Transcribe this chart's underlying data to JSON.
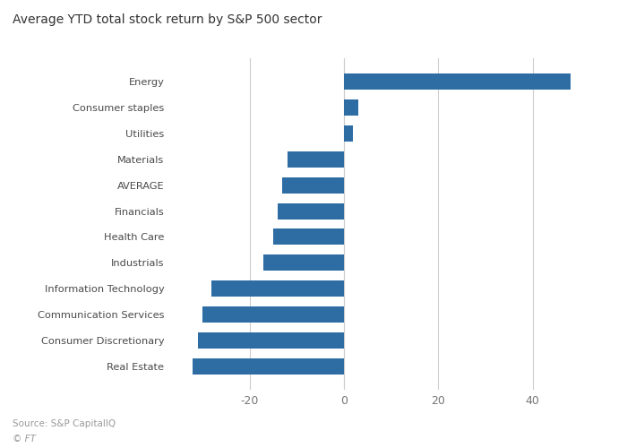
{
  "title": "Average YTD total stock return by S&P 500 sector",
  "source": "Source: S&P CapitalIQ",
  "footer": "© FT",
  "categories": [
    "Energy",
    "Consumer staples",
    "Utilities",
    "Materials",
    "AVERAGE",
    "Financials",
    "Health Care",
    "Industrials",
    "Information Technology",
    "Communication Services",
    "Consumer Discretionary",
    "Real Estate"
  ],
  "values": [
    48,
    3,
    2,
    -12,
    -13,
    -14,
    -15,
    -17,
    -28,
    -30,
    -31,
    -32
  ],
  "bar_color": "#2E6DA4",
  "background_color": "#FFFFFF",
  "text_color": "#4a4a4a",
  "grid_color": "#cccccc",
  "axis_label_color": "#777777",
  "title_color": "#333333",
  "source_color": "#999999",
  "xlim": [
    -37,
    56
  ],
  "xticks": [
    -20,
    0,
    20,
    40
  ]
}
